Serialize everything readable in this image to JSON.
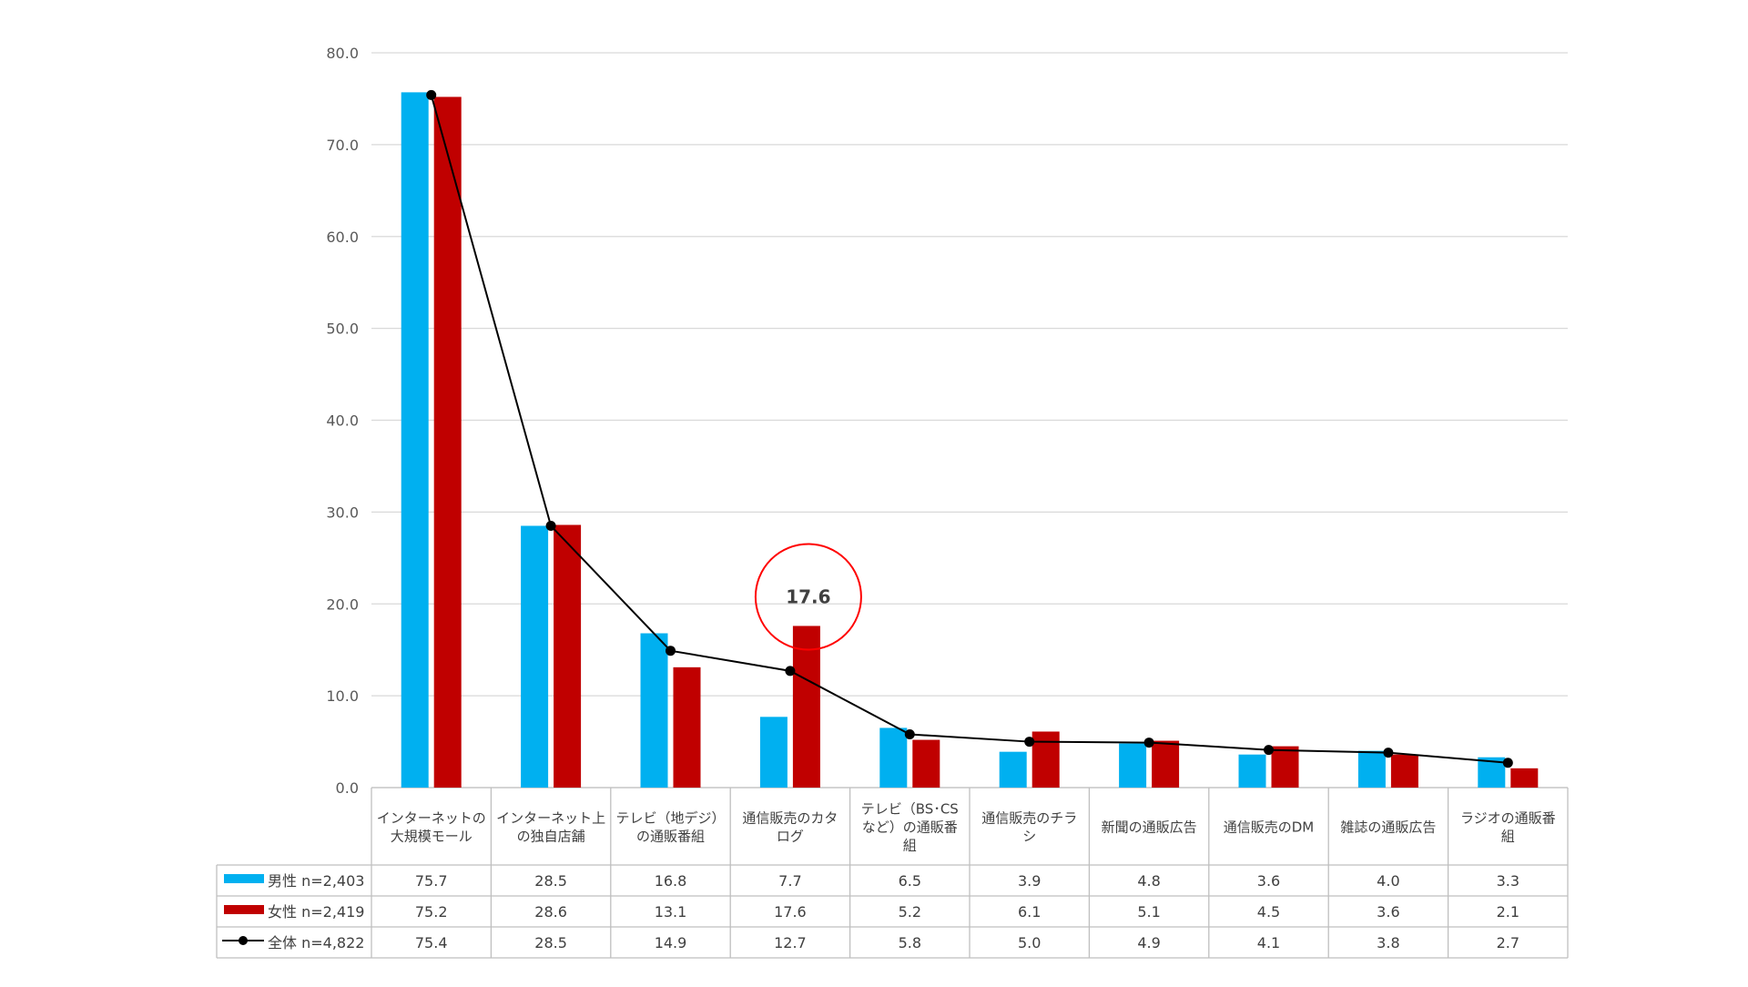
{
  "chart_data": {
    "type": "bar",
    "title": "",
    "xlabel": "",
    "ylabel": "",
    "ylim": [
      0,
      80
    ],
    "yticks": [
      "0.0",
      "10.0",
      "20.0",
      "30.0",
      "40.0",
      "50.0",
      "60.0",
      "70.0",
      "80.0"
    ],
    "grid": true,
    "categories": [
      [
        "インターネットの",
        "大規模モール"
      ],
      [
        "インターネット上",
        "の独自店舗"
      ],
      [
        "テレビ（地デジ）",
        "の通販番組"
      ],
      [
        "通信販売のカタ",
        "ログ"
      ],
      [
        "テレビ（BS･CS",
        "など）の通販番",
        "組"
      ],
      [
        "通信販売のチラ",
        "シ"
      ],
      [
        "新聞の通販広告"
      ],
      [
        "通信販売のDM"
      ],
      [
        "雑誌の通販広告"
      ],
      [
        "ラジオの通販番",
        "組"
      ]
    ],
    "series": [
      {
        "name": "男性 n=2,403",
        "kind": "bar",
        "color": "#00b0f0",
        "values": [
          75.7,
          28.5,
          16.8,
          7.7,
          6.5,
          3.9,
          4.8,
          3.6,
          4.0,
          3.3
        ],
        "labels": [
          "75.7",
          "28.5",
          "16.8",
          "7.7",
          "6.5",
          "3.9",
          "4.8",
          "3.6",
          "4.0",
          "3.3"
        ]
      },
      {
        "name": "女性 n=2,419",
        "kind": "bar",
        "color": "#c00000",
        "values": [
          75.2,
          28.6,
          13.1,
          17.6,
          5.2,
          6.1,
          5.1,
          4.5,
          3.6,
          2.1
        ],
        "labels": [
          "75.2",
          "28.6",
          "13.1",
          "17.6",
          "5.2",
          "6.1",
          "5.1",
          "4.5",
          "3.6",
          "2.1"
        ]
      },
      {
        "name": "全体  n=4,822",
        "kind": "line",
        "color": "#000000",
        "values": [
          75.4,
          28.5,
          14.9,
          12.7,
          5.8,
          5.0,
          4.9,
          4.1,
          3.8,
          2.7
        ],
        "labels": [
          "75.4",
          "28.5",
          "14.9",
          "12.7",
          "5.8",
          "5.0",
          "4.9",
          "4.1",
          "3.8",
          "2.7"
        ]
      }
    ],
    "annotation": {
      "text": "17.6",
      "category_index": 3,
      "value": 17.6,
      "color": "#ff0000"
    },
    "legend": "data-table"
  }
}
